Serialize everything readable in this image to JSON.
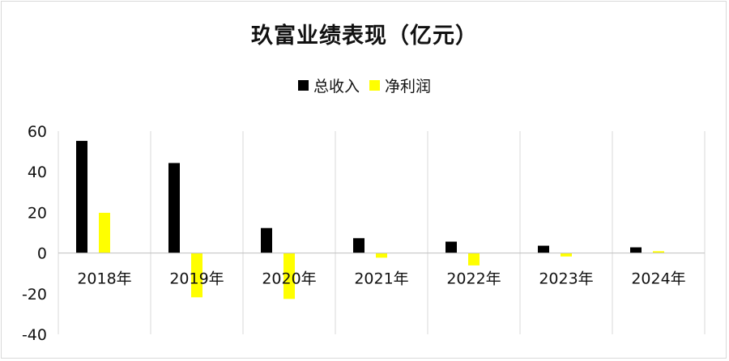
{
  "chart_data": {
    "type": "bar",
    "title": "玖富业绩表现（亿元）",
    "categories": [
      "2018年",
      "2019年",
      "2020年",
      "2021年",
      "2022年",
      "2023年",
      "2024年"
    ],
    "series": [
      {
        "name": "总收入",
        "color": "#000000",
        "values": [
          55.2,
          44.3,
          12.3,
          7.3,
          5.6,
          3.6,
          2.8
        ]
      },
      {
        "name": "净利润",
        "color": "#ffff00",
        "values": [
          19.8,
          -21.8,
          -22.6,
          -2.3,
          -6.1,
          -1.7,
          0.9
        ]
      }
    ],
    "ylim": [
      -40,
      60
    ],
    "yticks": [
      60,
      40,
      20,
      0,
      -20,
      -40
    ],
    "grid": "vertical",
    "legend_position": "top"
  }
}
